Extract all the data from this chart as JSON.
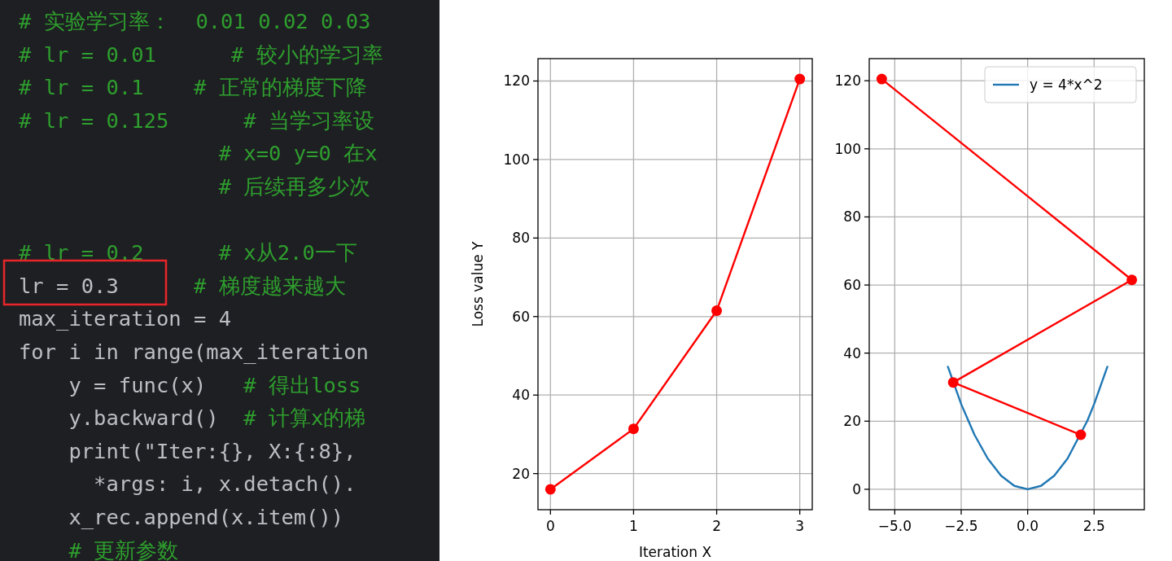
{
  "chart_data": [
    {
      "type": "other",
      "annotations": [
        "# 实验学习率：  0.01 0.02 0.03",
        "# lr = 0.01      # 较小的学习率",
        "# lr = 0.1    # 正常的梯度下降",
        "# lr = 0.125      # 当学习率设",
        "                # x=0 y=0 在x",
        "                # 后续再多少次",
        "# lr = 0.2      # x从2.0一下",
        "lr = 0.3      # 梯度越来越大",
        "max_iteration = 4",
        "for i in range(max_iteration",
        "    y = func(x)   # 得出loss",
        "    y.backward()  # 计算x的梯",
        "    print(\"Iter:{}, X:{:8}, ",
        "      *args: i, x.detach().",
        "    x_rec.append(x.item())",
        "    # 更新参数"
      ]
    },
    {
      "type": "line",
      "xlabel": "Iteration X",
      "ylabel": "Loss value Y",
      "x": [
        0,
        1,
        2,
        3
      ],
      "xlim": [
        -0.15,
        3.15
      ],
      "xticks": [
        0,
        1,
        2,
        3
      ],
      "ylim": [
        10.8,
        125.7
      ],
      "yticks": [
        20,
        40,
        60,
        80,
        100,
        120
      ],
      "grid": true,
      "marker": "circle",
      "series": [
        {
          "color": "#ff0000",
          "values": [
            16,
            31.4,
            61.5,
            120.5
          ]
        }
      ]
    },
    {
      "type": "line",
      "xlim": [
        -5.96,
        4.39
      ],
      "xticks": [
        {
          "value": -5,
          "label": "−5.0"
        },
        {
          "value": -2.5,
          "label": "−2.5"
        },
        {
          "value": 0,
          "label": "0.0"
        },
        {
          "value": 2.5,
          "label": "2.5"
        }
      ],
      "ylim": [
        -6.0,
        126.5
      ],
      "yticks": [
        0,
        20,
        40,
        60,
        80,
        100,
        120
      ],
      "grid": true,
      "legend": "top right",
      "series": [
        {
          "name": "y = 4*x^2",
          "color": "#1f77b4",
          "marker": "none",
          "x": [
            -3,
            -2.5,
            -2,
            -1.5,
            -1,
            -0.5,
            0,
            0.5,
            1,
            1.5,
            2.25,
            2.5,
            3
          ],
          "values": [
            36,
            25,
            16,
            9,
            4,
            1,
            0,
            1,
            4,
            9,
            20.2,
            25,
            36
          ]
        },
        {
          "color": "#ff0000",
          "marker": "circle",
          "x": [
            2,
            -2.8,
            3.92,
            -5.49
          ],
          "values": [
            16,
            31.4,
            61.5,
            120.5
          ]
        }
      ]
    }
  ]
}
